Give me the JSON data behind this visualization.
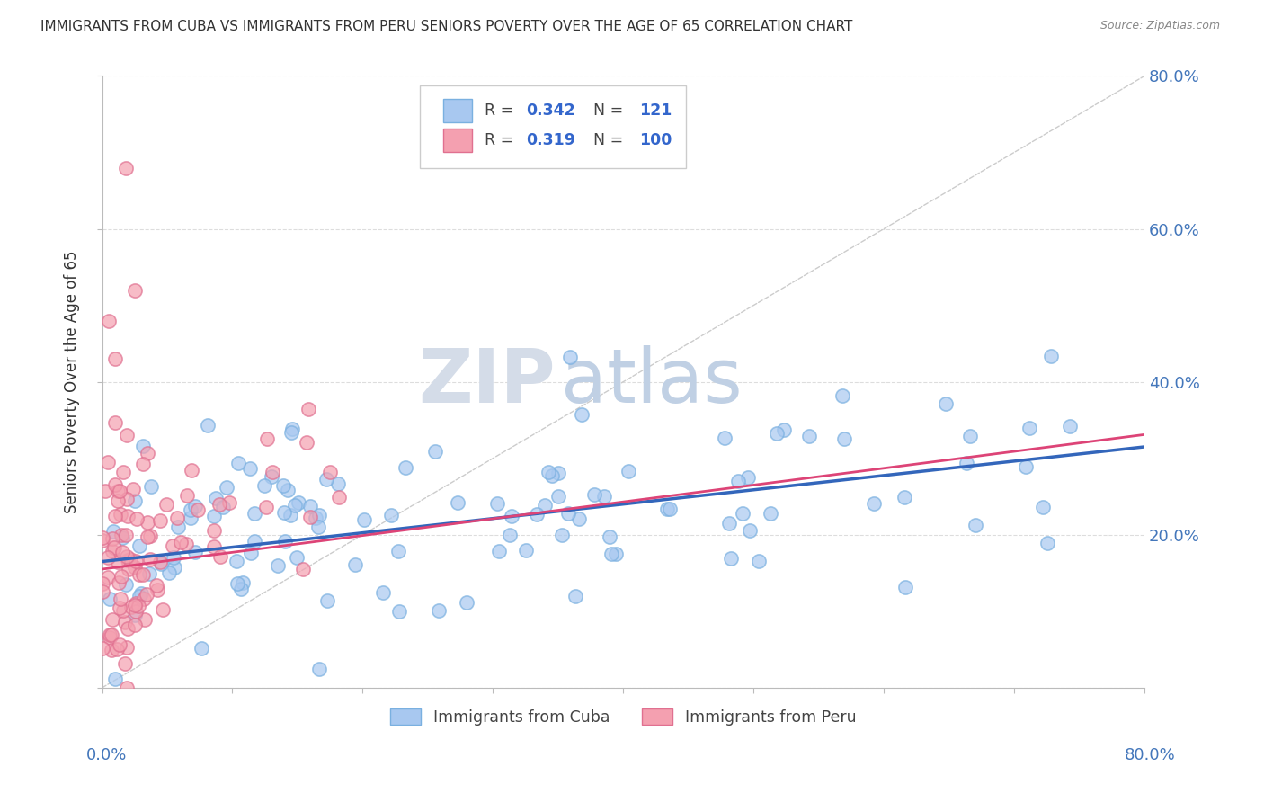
{
  "title": "IMMIGRANTS FROM CUBA VS IMMIGRANTS FROM PERU SENIORS POVERTY OVER THE AGE OF 65 CORRELATION CHART",
  "source": "Source: ZipAtlas.com",
  "ylabel": "Seniors Poverty Over the Age of 65",
  "xlim": [
    0.0,
    0.8
  ],
  "ylim": [
    0.0,
    0.8
  ],
  "ytick_positions": [
    0.0,
    0.2,
    0.4,
    0.6,
    0.8
  ],
  "ytick_labels_right": [
    "",
    "20.0%",
    "40.0%",
    "60.0%",
    "80.0%"
  ],
  "xtick_positions": [
    0.0,
    0.1,
    0.2,
    0.3,
    0.4,
    0.5,
    0.6,
    0.7,
    0.8
  ],
  "legend_r1_val": "0.342",
  "legend_n1_val": "121",
  "legend_r2_val": "0.319",
  "legend_n2_val": "100",
  "cuba_color": "#a8c8f0",
  "cuba_edge_color": "#7ab0e0",
  "peru_color": "#f4a0b0",
  "peru_edge_color": "#e07090",
  "cuba_line_color": "#3366bb",
  "peru_line_color": "#dd4477",
  "diagonal_color": "#cccccc",
  "watermark_zip": "ZIP",
  "watermark_atlas": "atlas",
  "watermark_zip_color": "#d0d8e8",
  "watermark_atlas_color": "#b8cce8",
  "cuba_R": 0.342,
  "cuba_N": 121,
  "peru_R": 0.319,
  "peru_N": 100,
  "background_color": "#ffffff",
  "grid_color": "#dddddd",
  "title_color": "#333333",
  "axis_label_color": "#4477bb",
  "legend_label_color": "#444444",
  "legend_val_color": "#3366cc",
  "source_color": "#888888"
}
